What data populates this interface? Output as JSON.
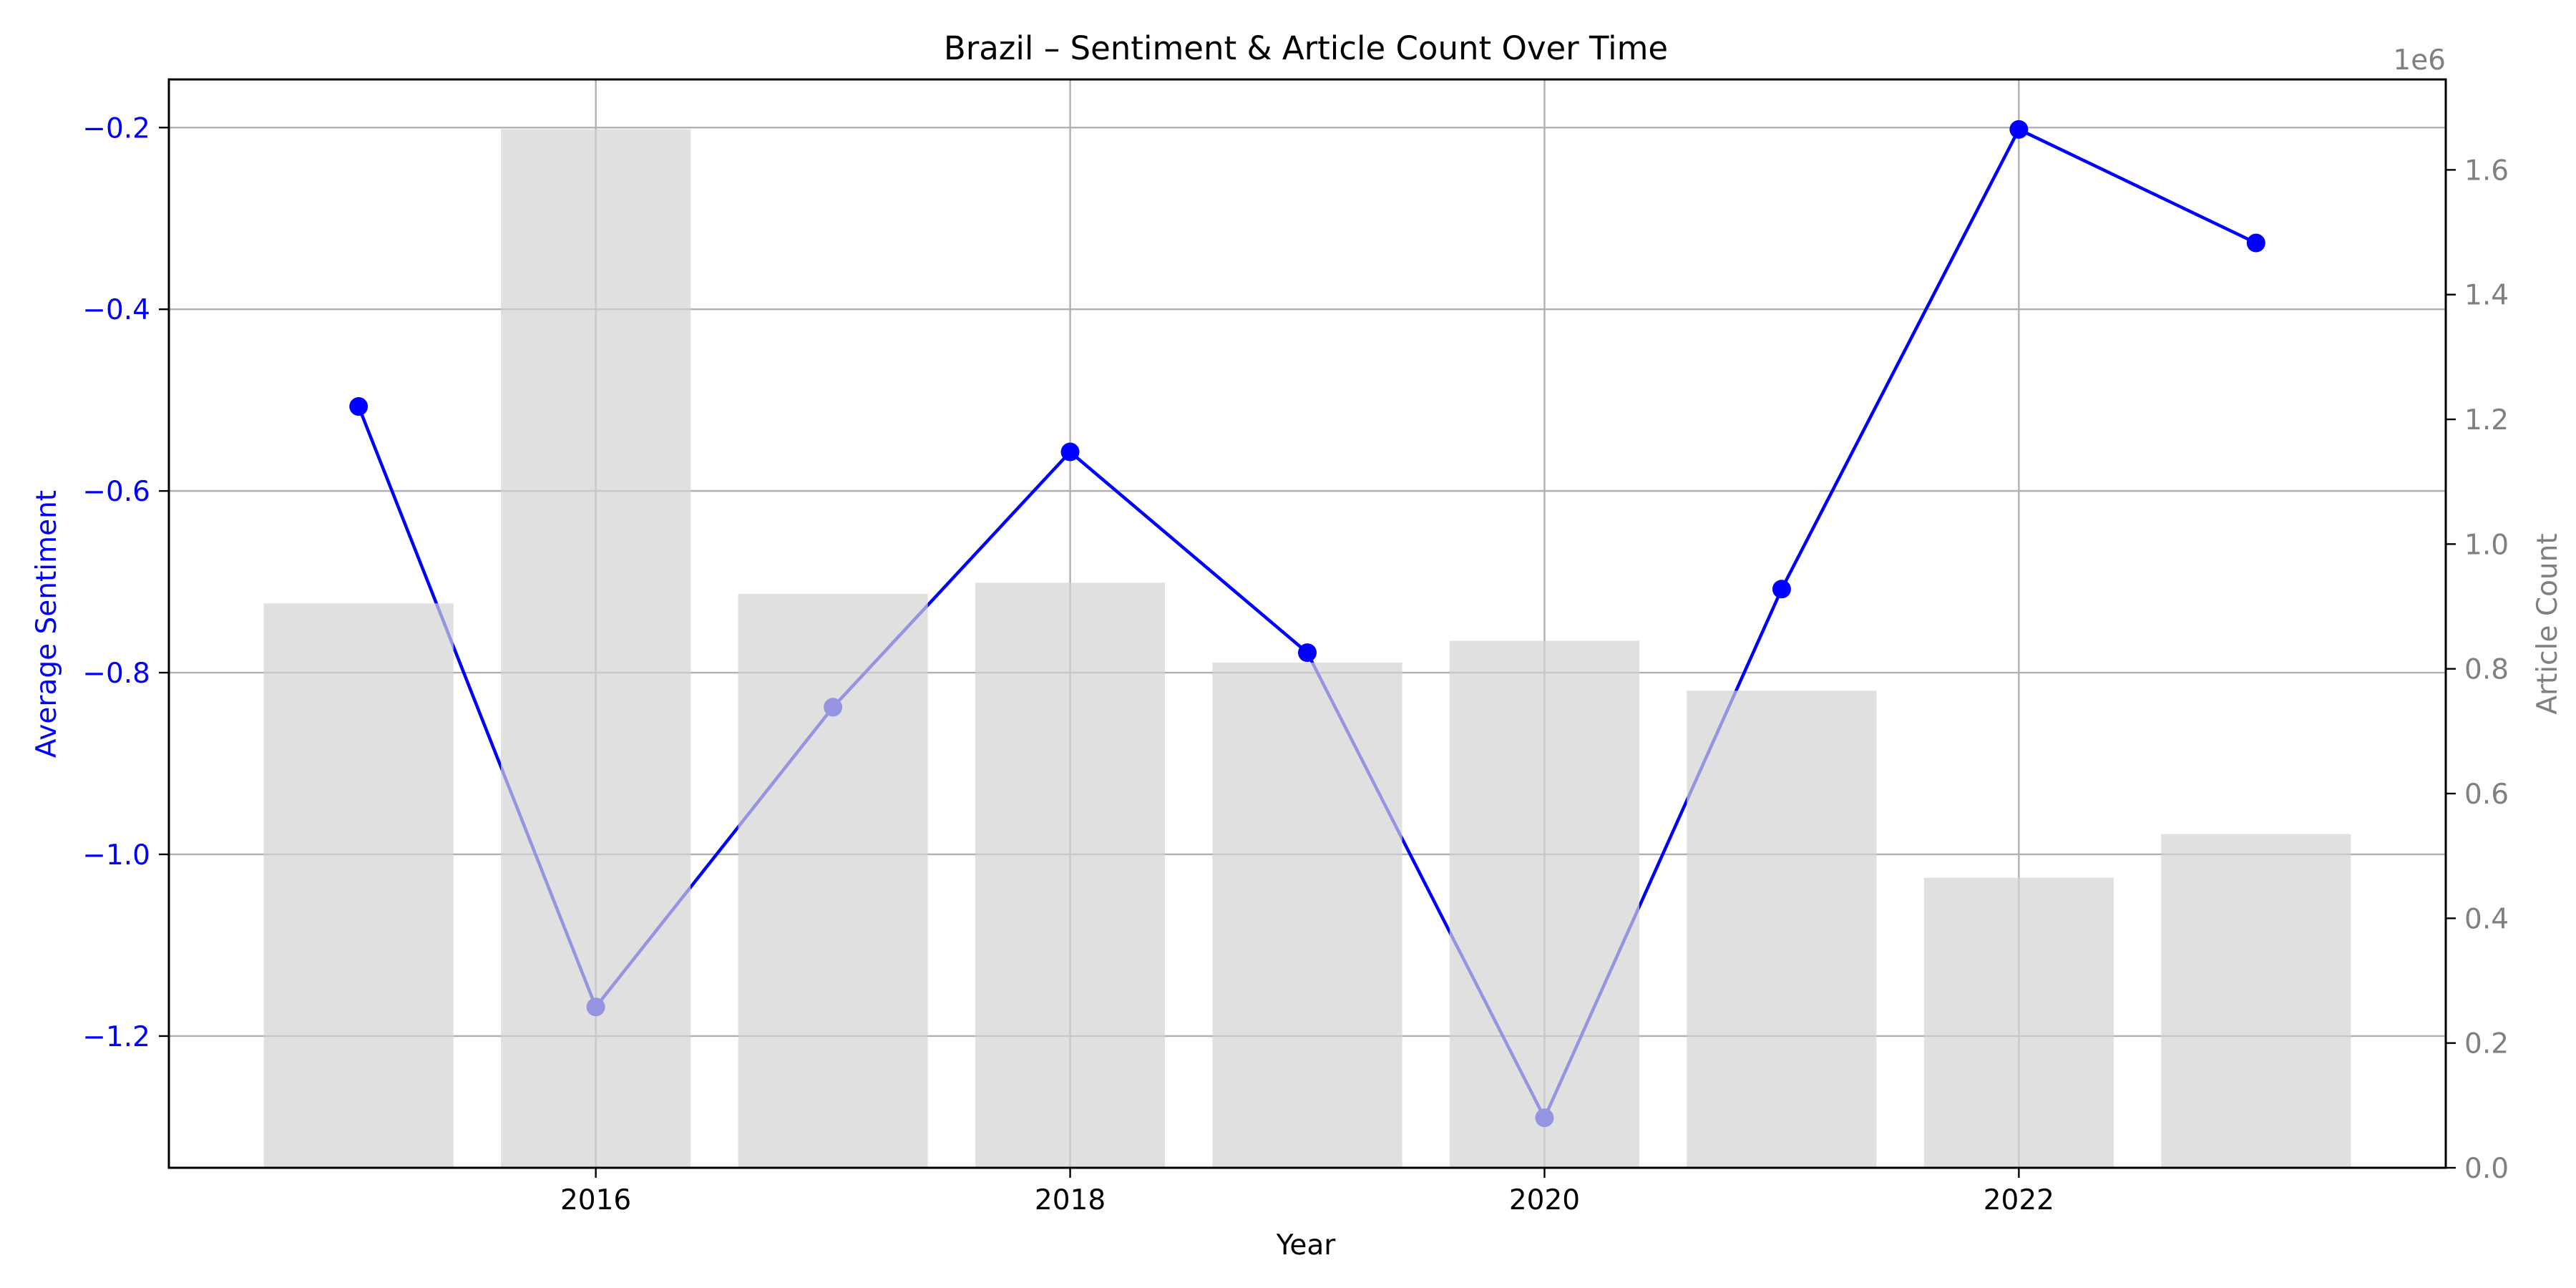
{
  "chart_data": {
    "type": "bar",
    "title": "Brazil – Sentiment & Article Count Over Time",
    "xlabel": "Year",
    "ylabel": "Average Sentiment",
    "y2label": "Article Count",
    "y2_offset_text": "1e6",
    "x": [
      2015,
      2016,
      2017,
      2018,
      2019,
      2020,
      2021,
      2022,
      2023
    ],
    "xlim": [
      2014.2,
      2023.8
    ],
    "x_ticks": [
      2016,
      2018,
      2020,
      2022
    ],
    "x_tick_labels": [
      "2016",
      "2018",
      "2020",
      "2022"
    ],
    "ylim": [
      -1.345,
      -0.147
    ],
    "y_ticks": [
      -1.2,
      -1.0,
      -0.8,
      -0.6,
      -0.4,
      -0.2
    ],
    "y_tick_labels": [
      "−1.2",
      "−1.0",
      "−0.8",
      "−0.6",
      "−0.4",
      "−0.2"
    ],
    "y2lim": [
      0,
      1.745
    ],
    "y2_ticks": [
      0,
      0.2,
      0.4,
      0.6,
      0.8,
      1.0,
      1.2,
      1.4,
      1.6
    ],
    "y2_tick_labels": [
      "0.0",
      "0.2",
      "0.4",
      "0.6",
      "0.8",
      "1.0",
      "1.2",
      "1.4",
      "1.6"
    ],
    "grid": true,
    "series": [
      {
        "type": "line",
        "axis": "left",
        "color": "#0000ff",
        "values": [
          -0.507,
          -1.168,
          -0.838,
          -0.557,
          -0.778,
          -1.29,
          -0.708,
          -0.202,
          -0.327
        ]
      },
      {
        "type": "bar",
        "axis": "right",
        "color": "#d3d3d3",
        "values": [
          0.905,
          1.665,
          0.92,
          0.938,
          0.81,
          0.845,
          0.765,
          0.465,
          0.535
        ]
      }
    ]
  }
}
